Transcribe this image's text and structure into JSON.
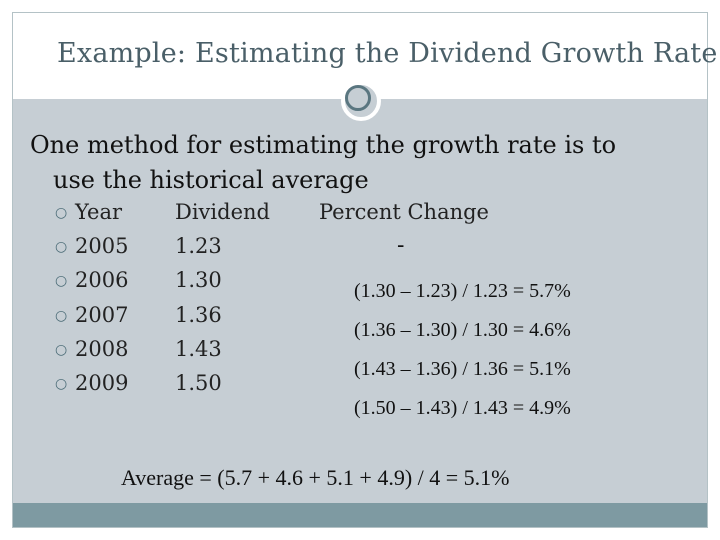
{
  "slide": {
    "title": "Example: Estimating the Dividend Growth Rate",
    "lead_bullet": "",
    "lead_line1": "One method for estimating the growth rate is to",
    "lead_line2": "use the historical average",
    "headers": {
      "year": "Year",
      "dividend": "Dividend",
      "change": "Percent Change"
    },
    "rows": [
      {
        "year": "2005",
        "dividend": "1.23"
      },
      {
        "year": "2006",
        "dividend": "1.30"
      },
      {
        "year": "2007",
        "dividend": "1.36"
      },
      {
        "year": "2008",
        "dividend": "1.43"
      },
      {
        "year": "2009",
        "dividend": "1.50"
      }
    ],
    "first_change": "-",
    "changes": [
      "(1.30 – 1.23) / 1.23 = 5.7%",
      "(1.36 – 1.30) / 1.30 = 4.6%",
      "(1.43 – 1.36) / 1.36 = 5.1%",
      "(1.50 – 1.43) / 1.43 = 4.9%"
    ],
    "average": "Average = (5.7 + 4.6 + 5.1 + 4.9) / 4 = 5.1%"
  },
  "colors": {
    "content_bg": "#c6ced4",
    "bottom_bar": "#7e9aa2",
    "title": "#4a5f68",
    "bullet": "#4d6d78"
  },
  "icons": {
    "sub_bullet": "circle-bullet-icon",
    "lead_bullet": "box-bullet-icon",
    "divider": "ring-icon"
  }
}
